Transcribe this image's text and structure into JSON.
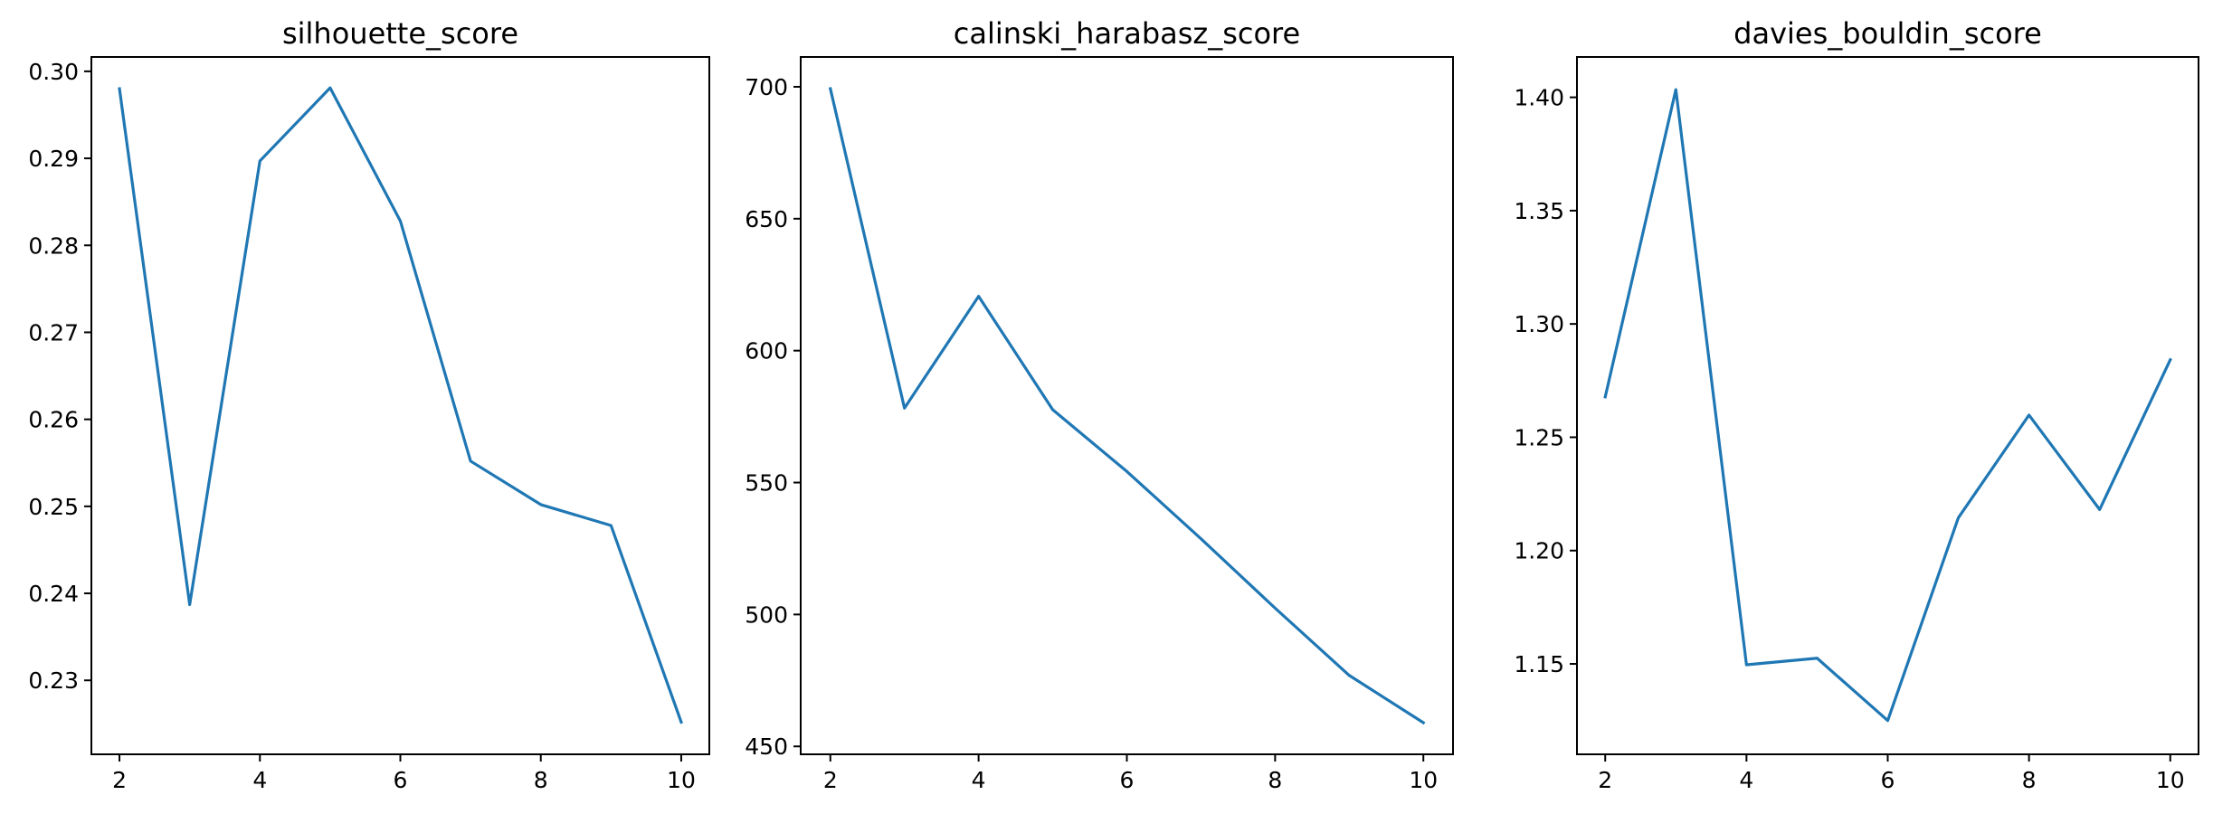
{
  "chart_data": [
    {
      "type": "line",
      "title": "silhouette_score",
      "xlabel": "",
      "ylabel": "",
      "x": [
        2,
        3,
        4,
        5,
        6,
        7,
        8,
        9,
        10
      ],
      "series": [
        {
          "values": [
            0.298,
            0.2387,
            0.2897,
            0.2981,
            0.2828,
            0.2552,
            0.2502,
            0.2478,
            0.2252
          ]
        }
      ],
      "xticks": [
        2,
        4,
        6,
        8,
        10
      ],
      "yticks": [
        0.23,
        0.24,
        0.25,
        0.26,
        0.27,
        0.28,
        0.29,
        0.3
      ],
      "ytick_labels": [
        "0.23",
        "0.24",
        "0.25",
        "0.26",
        "0.27",
        "0.28",
        "0.29",
        "0.30"
      ],
      "xlim": [
        1.6,
        10.4
      ],
      "ylim": [
        0.2215,
        0.30165
      ],
      "grid": false
    },
    {
      "type": "line",
      "title": "calinski_harabasz_score",
      "xlabel": "",
      "ylabel": "",
      "x": [
        2,
        3,
        4,
        5,
        6,
        7,
        8,
        9,
        10
      ],
      "series": [
        {
          "values": [
            699.3,
            578.2,
            620.6,
            577.6,
            554.2,
            528.7,
            502.4,
            476.9,
            459.0
          ]
        }
      ],
      "xticks": [
        2,
        4,
        6,
        8,
        10
      ],
      "yticks": [
        450,
        500,
        550,
        600,
        650,
        700
      ],
      "ytick_labels": [
        "450",
        "500",
        "550",
        "600",
        "650",
        "700"
      ],
      "xlim": [
        1.6,
        10.4
      ],
      "ylim": [
        447.0,
        711.3
      ],
      "grid": false
    },
    {
      "type": "line",
      "title": "davies_bouldin_score",
      "xlabel": "",
      "ylabel": "",
      "x": [
        2,
        3,
        4,
        5,
        6,
        7,
        8,
        9,
        10
      ],
      "series": [
        {
          "values": [
            1.2678,
            1.4034,
            1.1496,
            1.1525,
            1.125,
            1.2145,
            1.2598,
            1.2181,
            1.2842
          ]
        }
      ],
      "xticks": [
        2,
        4,
        6,
        8,
        10
      ],
      "yticks": [
        1.15,
        1.2,
        1.25,
        1.3,
        1.35,
        1.4
      ],
      "ytick_labels": [
        "1.15",
        "1.20",
        "1.25",
        "1.30",
        "1.35",
        "1.40"
      ],
      "xlim": [
        1.6,
        10.4
      ],
      "ylim": [
        1.1101,
        1.4178
      ],
      "grid": false
    }
  ],
  "colors": {
    "line": "#1f77b4",
    "axes": "#000000",
    "background": "#ffffff"
  }
}
